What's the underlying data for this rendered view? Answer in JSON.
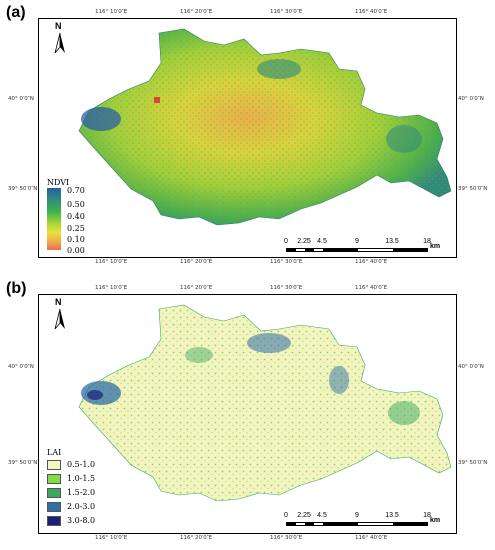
{
  "panels": [
    {
      "label": "(a)",
      "legend_title": "NDVI",
      "legend_values": [
        "0.70",
        "0.50",
        "0.40",
        "0.25",
        "0.10",
        "0.00"
      ]
    },
    {
      "label": "(b)",
      "legend_title": "LAI",
      "legend_classes": [
        {
          "label": "0.5-1.0",
          "color": "#f6f6c0"
        },
        {
          "label": "1.0-1.5",
          "color": "#7fdc48"
        },
        {
          "label": "1.5-2.0",
          "color": "#3aa862"
        },
        {
          "label": "2.0-3.0",
          "color": "#2f6fa6"
        },
        {
          "label": "3.0-8.0",
          "color": "#1a1f7a"
        }
      ]
    }
  ],
  "north_label": "N",
  "lon_ticks": [
    "116° 10′0″E",
    "116° 20′0″E",
    "116° 30′0″E",
    "116° 40′0″E"
  ],
  "lon_ticks_bottom": [
    "116° 10′0″E",
    "116° 20′0″E",
    "116° 30′0″E",
    "116° 40′0″E"
  ],
  "lat_ticks": [
    "40° 0′0″N",
    "39° 50′0″N"
  ],
  "scale_labels": [
    "0",
    "2.25",
    "4.5",
    "9",
    "13.5",
    "18"
  ],
  "scale_unit": "km",
  "ndvi_colors": [
    "#2a5fa6",
    "#2e8f7a",
    "#3cb44a",
    "#9ed23a",
    "#e8e23c",
    "#f2a44a",
    "#e36d55"
  ],
  "map_icon": "north-arrow-icon"
}
